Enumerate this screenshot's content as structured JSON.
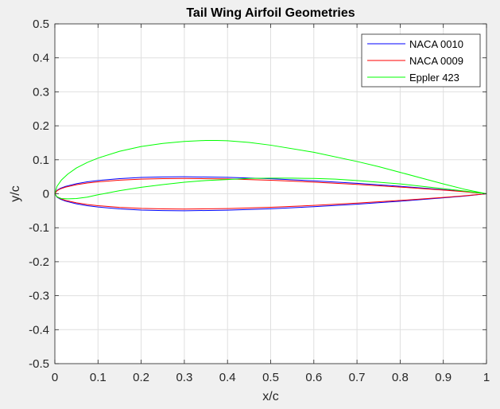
{
  "chart_data": {
    "type": "line",
    "title": "Tail Wing Airfoil Geometries",
    "xlabel": "x/c",
    "ylabel": "y/c",
    "xlim": [
      0,
      1
    ],
    "ylim": [
      -0.5,
      0.5
    ],
    "xticks": [
      0,
      0.1,
      0.2,
      0.3,
      0.4,
      0.5,
      0.6,
      0.7,
      0.8,
      0.9,
      1
    ],
    "xtick_labels": [
      "0",
      "0.1",
      "0.2",
      "0.3",
      "0.4",
      "0.5",
      "0.6",
      "0.7",
      "0.8",
      "0.9",
      "1"
    ],
    "yticks": [
      -0.5,
      -0.4,
      -0.3,
      -0.2,
      -0.1,
      0,
      0.1,
      0.2,
      0.3,
      0.4,
      0.5
    ],
    "ytick_labels": [
      "-0.5",
      "-0.4",
      "-0.3",
      "-0.2",
      "-0.1",
      "0",
      "0.1",
      "0.2",
      "0.3",
      "0.4",
      "0.5"
    ],
    "grid": true,
    "legend_position": "top-right",
    "series": [
      {
        "name": "NACA 0010",
        "color": "#0000ff",
        "points": [
          [
            1.0,
            0.0
          ],
          [
            0.95,
            0.0067
          ],
          [
            0.9,
            0.0121
          ],
          [
            0.8,
            0.0219
          ],
          [
            0.7,
            0.0306
          ],
          [
            0.6,
            0.0381
          ],
          [
            0.5,
            0.0441
          ],
          [
            0.4,
            0.0484
          ],
          [
            0.3,
            0.05
          ],
          [
            0.25,
            0.0496
          ],
          [
            0.2,
            0.0479
          ],
          [
            0.15,
            0.0445
          ],
          [
            0.1,
            0.039
          ],
          [
            0.075,
            0.0351
          ],
          [
            0.05,
            0.0296
          ],
          [
            0.025,
            0.0218
          ],
          [
            0.0125,
            0.0158
          ],
          [
            0.005,
            0.01
          ],
          [
            0.0,
            0.0
          ],
          [
            0.005,
            -0.01
          ],
          [
            0.0125,
            -0.0158
          ],
          [
            0.025,
            -0.0218
          ],
          [
            0.05,
            -0.0296
          ],
          [
            0.075,
            -0.0351
          ],
          [
            0.1,
            -0.039
          ],
          [
            0.15,
            -0.0445
          ],
          [
            0.2,
            -0.0479
          ],
          [
            0.25,
            -0.0496
          ],
          [
            0.3,
            -0.05
          ],
          [
            0.4,
            -0.0484
          ],
          [
            0.5,
            -0.0441
          ],
          [
            0.6,
            -0.0381
          ],
          [
            0.7,
            -0.0306
          ],
          [
            0.8,
            -0.0219
          ],
          [
            0.9,
            -0.0121
          ],
          [
            0.95,
            -0.0067
          ],
          [
            1.0,
            0.0
          ]
        ]
      },
      {
        "name": "NACA 0009",
        "color": "#ff0000",
        "points": [
          [
            1.0,
            0.0
          ],
          [
            0.95,
            0.006
          ],
          [
            0.9,
            0.0109
          ],
          [
            0.8,
            0.0197
          ],
          [
            0.7,
            0.0275
          ],
          [
            0.6,
            0.0343
          ],
          [
            0.5,
            0.0397
          ],
          [
            0.4,
            0.0435
          ],
          [
            0.3,
            0.045
          ],
          [
            0.25,
            0.0446
          ],
          [
            0.2,
            0.0431
          ],
          [
            0.15,
            0.04
          ],
          [
            0.1,
            0.0351
          ],
          [
            0.075,
            0.0316
          ],
          [
            0.05,
            0.0266
          ],
          [
            0.025,
            0.0196
          ],
          [
            0.0125,
            0.0142
          ],
          [
            0.005,
            0.009
          ],
          [
            0.0,
            0.0
          ],
          [
            0.005,
            -0.009
          ],
          [
            0.0125,
            -0.0142
          ],
          [
            0.025,
            -0.0196
          ],
          [
            0.05,
            -0.0266
          ],
          [
            0.075,
            -0.0316
          ],
          [
            0.1,
            -0.0351
          ],
          [
            0.15,
            -0.04
          ],
          [
            0.2,
            -0.0431
          ],
          [
            0.25,
            -0.0446
          ],
          [
            0.3,
            -0.045
          ],
          [
            0.4,
            -0.0435
          ],
          [
            0.5,
            -0.0397
          ],
          [
            0.6,
            -0.0343
          ],
          [
            0.7,
            -0.0275
          ],
          [
            0.8,
            -0.0197
          ],
          [
            0.9,
            -0.0109
          ],
          [
            0.95,
            -0.006
          ],
          [
            1.0,
            0.0
          ]
        ]
      },
      {
        "name": "Eppler 423",
        "color": "#00ff00",
        "points": [
          [
            1.0,
            0.0
          ],
          [
            0.95,
            0.013
          ],
          [
            0.9,
            0.029
          ],
          [
            0.85,
            0.046
          ],
          [
            0.8,
            0.063
          ],
          [
            0.75,
            0.08
          ],
          [
            0.7,
            0.095
          ],
          [
            0.6,
            0.122
          ],
          [
            0.5,
            0.143
          ],
          [
            0.45,
            0.151
          ],
          [
            0.4,
            0.156
          ],
          [
            0.375,
            0.157
          ],
          [
            0.35,
            0.157
          ],
          [
            0.3,
            0.154
          ],
          [
            0.25,
            0.148
          ],
          [
            0.2,
            0.139
          ],
          [
            0.15,
            0.125
          ],
          [
            0.1,
            0.105
          ],
          [
            0.075,
            0.092
          ],
          [
            0.05,
            0.076
          ],
          [
            0.03,
            0.058
          ],
          [
            0.015,
            0.04
          ],
          [
            0.005,
            0.022
          ],
          [
            0.0,
            0.0
          ],
          [
            0.005,
            -0.009
          ],
          [
            0.015,
            -0.014
          ],
          [
            0.03,
            -0.015
          ],
          [
            0.05,
            -0.014
          ],
          [
            0.075,
            -0.01
          ],
          [
            0.1,
            -0.003
          ],
          [
            0.15,
            0.009
          ],
          [
            0.2,
            0.019
          ],
          [
            0.25,
            0.027
          ],
          [
            0.3,
            0.034
          ],
          [
            0.35,
            0.039
          ],
          [
            0.4,
            0.042
          ],
          [
            0.45,
            0.045
          ],
          [
            0.5,
            0.046
          ],
          [
            0.55,
            0.046
          ],
          [
            0.6,
            0.045
          ],
          [
            0.65,
            0.043
          ],
          [
            0.7,
            0.039
          ],
          [
            0.75,
            0.034
          ],
          [
            0.8,
            0.029
          ],
          [
            0.85,
            0.022
          ],
          [
            0.9,
            0.015
          ],
          [
            0.95,
            0.008
          ],
          [
            1.0,
            0.0
          ]
        ]
      }
    ]
  }
}
